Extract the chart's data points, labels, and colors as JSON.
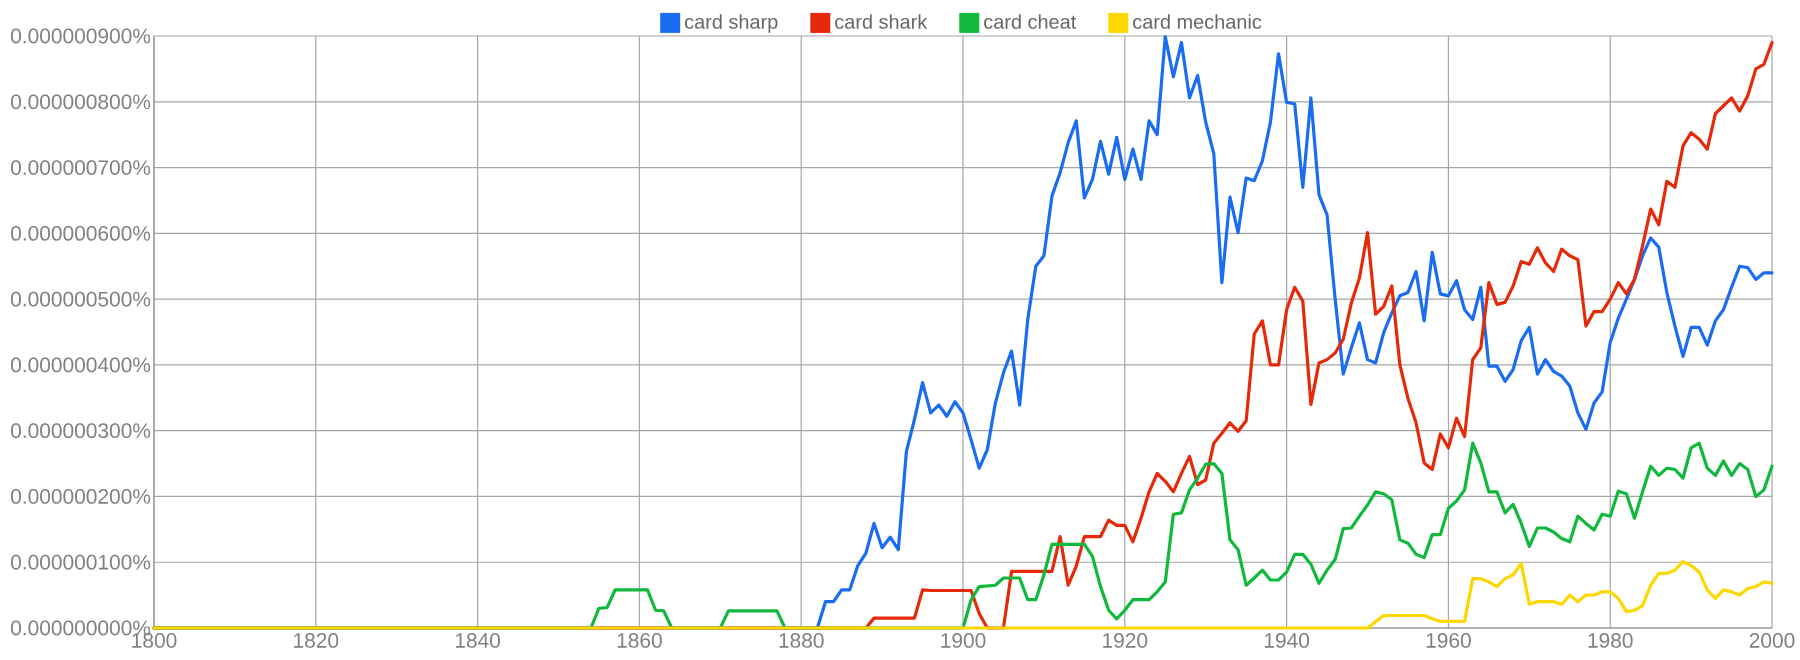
{
  "chart_data": {
    "type": "line",
    "xlim": [
      1800,
      2000
    ],
    "ylim": [
      0,
      9e-07
    ],
    "xticks": [
      1800,
      1820,
      1840,
      1860,
      1880,
      1900,
      1920,
      1940,
      1960,
      1980,
      2000
    ],
    "yticks": [
      {
        "value": 0,
        "label": "0.000000000%"
      },
      {
        "value": 1e-07,
        "label": "0.000000100%"
      },
      {
        "value": 2e-07,
        "label": "0.000000200%"
      },
      {
        "value": 3e-07,
        "label": "0.000000300%"
      },
      {
        "value": 4e-07,
        "label": "0.000000400%"
      },
      {
        "value": 5e-07,
        "label": "0.000000500%"
      },
      {
        "value": 6e-07,
        "label": "0.000000600%"
      },
      {
        "value": 7e-07,
        "label": "0.000000700%"
      },
      {
        "value": 8e-07,
        "label": "0.000000800%"
      },
      {
        "value": 9e-07,
        "label": "0.000000900%"
      }
    ],
    "grid": true,
    "legend": "top",
    "marker": "none",
    "line_style": "solid",
    "series": [
      {
        "name": "card sharp",
        "color": "#1a6cf0",
        "x": [
          1800,
          1882,
          1883,
          1884,
          1885,
          1886,
          1887,
          1888,
          1889,
          1890,
          1891,
          1892,
          1893,
          1894,
          1895,
          1896,
          1897,
          1898,
          1899,
          1900,
          1901,
          1902,
          1903,
          1904,
          1905,
          1906,
          1907,
          1908,
          1909,
          1910,
          1911,
          1912,
          1913,
          1914,
          1915,
          1916,
          1917,
          1918,
          1919,
          1920,
          1921,
          1922,
          1923,
          1924,
          1925,
          1926,
          1927,
          1928,
          1929,
          1930,
          1931,
          1932,
          1933,
          1934,
          1935,
          1936,
          1937,
          1938,
          1939,
          1940,
          1941,
          1942,
          1943,
          1944,
          1945,
          1946,
          1947,
          1948,
          1949,
          1950,
          1951,
          1952,
          1953,
          1954,
          1955,
          1956,
          1957,
          1958,
          1959,
          1960,
          1961,
          1962,
          1963,
          1964,
          1965,
          1966,
          1967,
          1968,
          1969,
          1970,
          1971,
          1972,
          1973,
          1974,
          1975,
          1976,
          1977,
          1978,
          1979,
          1980,
          1981,
          1982,
          1983,
          1984,
          1985,
          1986,
          1987,
          1988,
          1989,
          1990,
          1991,
          1992,
          1993,
          1994,
          1995,
          1996,
          1997,
          1998,
          1999,
          2000
        ],
        "values": [
          0,
          0,
          4e-08,
          4e-08,
          5.8e-08,
          5.8e-08,
          9.5e-08,
          1.14e-07,
          1.59e-07,
          1.22e-07,
          1.38e-07,
          1.19e-07,
          2.68e-07,
          3.17e-07,
          3.73e-07,
          3.27e-07,
          3.39e-07,
          3.22e-07,
          3.44e-07,
          3.27e-07,
          2.86e-07,
          2.43e-07,
          2.71e-07,
          3.42e-07,
          3.88e-07,
          4.21e-07,
          3.39e-07,
          4.69e-07,
          5.5e-07,
          5.66e-07,
          6.57e-07,
          6.92e-07,
          7.38e-07,
          7.71e-07,
          6.54e-07,
          6.82e-07,
          7.4e-07,
          6.9e-07,
          7.46e-07,
          6.82e-07,
          7.28e-07,
          6.82e-07,
          7.71e-07,
          7.5e-07,
          8.99e-07,
          8.38e-07,
          8.9e-07,
          8.06e-07,
          8.4e-07,
          7.69e-07,
          7.21e-07,
          5.25e-07,
          6.55e-07,
          6.01e-07,
          6.84e-07,
          6.8e-07,
          7.1e-07,
          7.69e-07,
          8.73e-07,
          7.99e-07,
          7.97e-07,
          6.7e-07,
          8.06e-07,
          6.59e-07,
          6.28e-07,
          5e-07,
          3.86e-07,
          4.26e-07,
          4.64e-07,
          4.08e-07,
          4.03e-07,
          4.49e-07,
          4.79e-07,
          5.05e-07,
          5.1e-07,
          5.42e-07,
          4.67e-07,
          5.71e-07,
          5.08e-07,
          5.05e-07,
          5.28e-07,
          4.84e-07,
          4.69e-07,
          5.18e-07,
          3.98e-07,
          3.98e-07,
          3.75e-07,
          3.93e-07,
          4.37e-07,
          4.57e-07,
          3.86e-07,
          4.08e-07,
          3.9e-07,
          3.83e-07,
          3.68e-07,
          3.27e-07,
          3.02e-07,
          3.42e-07,
          3.59e-07,
          4.34e-07,
          4.71e-07,
          5e-07,
          5.3e-07,
          5.66e-07,
          5.93e-07,
          5.79e-07,
          5.1e-07,
          4.59e-07,
          4.13e-07,
          4.57e-07,
          4.57e-07,
          4.3e-07,
          4.67e-07,
          4.84e-07,
          5.18e-07,
          5.5e-07,
          5.48e-07,
          5.3e-07,
          5.4e-07,
          5.4e-07
        ]
      },
      {
        "name": "card shark",
        "color": "#e52a0a",
        "x": [
          1800,
          1888,
          1889,
          1894,
          1895,
          1896,
          1901,
          1902,
          1903,
          1905,
          1906,
          1911,
          1912,
          1913,
          1914,
          1915,
          1917,
          1918,
          1919,
          1920,
          1921,
          1922,
          1923,
          1924,
          1925,
          1926,
          1927,
          1928,
          1929,
          1930,
          1931,
          1932,
          1933,
          1934,
          1935,
          1936,
          1937,
          1938,
          1939,
          1940,
          1941,
          1942,
          1943,
          1944,
          1945,
          1946,
          1947,
          1948,
          1949,
          1950,
          1951,
          1952,
          1953,
          1954,
          1955,
          1956,
          1957,
          1958,
          1959,
          1960,
          1961,
          1962,
          1963,
          1964,
          1965,
          1966,
          1967,
          1968,
          1969,
          1970,
          1971,
          1972,
          1973,
          1974,
          1975,
          1976,
          1977,
          1978,
          1979,
          1980,
          1981,
          1982,
          1983,
          1984,
          1985,
          1986,
          1987,
          1988,
          1989,
          1990,
          1991,
          1992,
          1993,
          1994,
          1995,
          1996,
          1997,
          1998,
          1999,
          2000
        ],
        "values": [
          0,
          0,
          1.5e-08,
          1.5e-08,
          5.8e-08,
          5.7e-08,
          5.7e-08,
          2.2e-08,
          0,
          0,
          8.6e-08,
          8.6e-08,
          1.39e-07,
          6.5e-08,
          9.4e-08,
          1.39e-07,
          1.39e-07,
          1.64e-07,
          1.56e-07,
          1.56e-07,
          1.31e-07,
          1.67e-07,
          2.07e-07,
          2.35e-07,
          2.23e-07,
          2.07e-07,
          2.35e-07,
          2.61e-07,
          2.18e-07,
          2.25e-07,
          2.81e-07,
          2.96e-07,
          3.12e-07,
          2.99e-07,
          3.15e-07,
          4.47e-07,
          4.67e-07,
          4e-07,
          4e-07,
          4.84e-07,
          5.18e-07,
          4.97e-07,
          3.4e-07,
          4.03e-07,
          4.08e-07,
          4.18e-07,
          4.39e-07,
          4.94e-07,
          5.32e-07,
          6.01e-07,
          4.77e-07,
          4.89e-07,
          5.2e-07,
          4e-07,
          3.49e-07,
          3.12e-07,
          2.51e-07,
          2.41e-07,
          2.95e-07,
          2.74e-07,
          3.19e-07,
          2.91e-07,
          4.08e-07,
          4.26e-07,
          5.25e-07,
          4.92e-07,
          4.95e-07,
          5.2e-07,
          5.57e-07,
          5.53e-07,
          5.78e-07,
          5.55e-07,
          5.42e-07,
          5.76e-07,
          5.66e-07,
          5.6e-07,
          4.59e-07,
          4.81e-07,
          4.81e-07,
          5e-07,
          5.25e-07,
          5.08e-07,
          5.3e-07,
          5.81e-07,
          6.37e-07,
          6.13e-07,
          6.79e-07,
          6.7e-07,
          7.33e-07,
          7.53e-07,
          7.43e-07,
          7.28e-07,
          7.82e-07,
          7.94e-07,
          8.06e-07,
          7.86e-07,
          8.09e-07,
          8.5e-07,
          8.57e-07,
          8.9e-07
        ]
      },
      {
        "name": "card cheat",
        "color": "#10b83c",
        "x": [
          1800,
          1854,
          1855,
          1856,
          1857,
          1861,
          1862,
          1863,
          1864,
          1870,
          1871,
          1877,
          1878,
          1900,
          1901,
          1902,
          1904,
          1905,
          1907,
          1908,
          1909,
          1910,
          1911,
          1915,
          1916,
          1917,
          1918,
          1919,
          1920,
          1921,
          1923,
          1924,
          1925,
          1926,
          1927,
          1928,
          1929,
          1930,
          1931,
          1932,
          1933,
          1934,
          1935,
          1936,
          1937,
          1938,
          1939,
          1940,
          1941,
          1942,
          1943,
          1944,
          1945,
          1946,
          1947,
          1948,
          1949,
          1950,
          1951,
          1952,
          1953,
          1954,
          1955,
          1956,
          1957,
          1958,
          1959,
          1960,
          1961,
          1962,
          1963,
          1964,
          1965,
          1966,
          1967,
          1968,
          1969,
          1970,
          1971,
          1972,
          1973,
          1974,
          1975,
          1976,
          1977,
          1978,
          1979,
          1980,
          1981,
          1982,
          1983,
          1984,
          1985,
          1986,
          1987,
          1988,
          1989,
          1990,
          1991,
          1992,
          1993,
          1994,
          1995,
          1996,
          1997,
          1998,
          1999,
          2000
        ],
        "values": [
          0,
          0,
          3e-08,
          3.1e-08,
          5.8e-08,
          5.8e-08,
          2.7e-08,
          2.6e-08,
          0,
          0,
          2.6e-08,
          2.6e-08,
          0,
          0,
          4.3e-08,
          6.3e-08,
          6.5e-08,
          7.6e-08,
          7.6e-08,
          4.3e-08,
          4.3e-08,
          8.1e-08,
          1.27e-07,
          1.27e-07,
          1.09e-07,
          6.3e-08,
          2.7e-08,
          1.4e-08,
          2.7e-08,
          4.3e-08,
          4.3e-08,
          5.5e-08,
          7e-08,
          1.73e-07,
          1.75e-07,
          2.1e-07,
          2.28e-07,
          2.49e-07,
          2.5e-07,
          2.35e-07,
          1.34e-07,
          1.19e-07,
          6.5e-08,
          7.6e-08,
          8.8e-08,
          7.3e-08,
          7.3e-08,
          8.5e-08,
          1.12e-07,
          1.12e-07,
          9.7e-08,
          6.8e-08,
          8.8e-08,
          1.04e-07,
          1.51e-07,
          1.52e-07,
          1.7e-07,
          1.87e-07,
          2.07e-07,
          2.04e-07,
          1.95e-07,
          1.34e-07,
          1.29e-07,
          1.12e-07,
          1.07e-07,
          1.42e-07,
          1.42e-07,
          1.82e-07,
          1.93e-07,
          2.1e-07,
          2.81e-07,
          2.51e-07,
          2.07e-07,
          2.07e-07,
          1.75e-07,
          1.88e-07,
          1.59e-07,
          1.24e-07,
          1.52e-07,
          1.52e-07,
          1.46e-07,
          1.36e-07,
          1.31e-07,
          1.7e-07,
          1.59e-07,
          1.49e-07,
          1.73e-07,
          1.7e-07,
          2.08e-07,
          2.04e-07,
          1.67e-07,
          2.07e-07,
          2.46e-07,
          2.32e-07,
          2.43e-07,
          2.41e-07,
          2.28e-07,
          2.74e-07,
          2.81e-07,
          2.43e-07,
          2.32e-07,
          2.54e-07,
          2.32e-07,
          2.5e-07,
          2.41e-07,
          2e-07,
          2.1e-07,
          2.46e-07
        ]
      },
      {
        "name": "card mechanic",
        "color": "#ffd700",
        "x": [
          1800,
          1950,
          1952,
          1957,
          1958,
          1959,
          1962,
          1963,
          1964,
          1965,
          1966,
          1967,
          1968,
          1969,
          1970,
          1971,
          1973,
          1974,
          1975,
          1976,
          1977,
          1978,
          1979,
          1980,
          1981,
          1982,
          1983,
          1984,
          1985,
          1986,
          1987,
          1988,
          1989,
          1990,
          1991,
          1992,
          1993,
          1994,
          1995,
          1996,
          1997,
          1998,
          1999,
          2000
        ],
        "values": [
          0,
          0,
          1.9e-08,
          1.9e-08,
          1.4e-08,
          1e-08,
          1e-08,
          7.5e-08,
          7.5e-08,
          7e-08,
          6.3e-08,
          7.5e-08,
          8.1e-08,
          9.8e-08,
          3.6e-08,
          4e-08,
          4e-08,
          3.6e-08,
          5e-08,
          4e-08,
          5e-08,
          5e-08,
          5.5e-08,
          5.5e-08,
          4.5e-08,
          2.5e-08,
          2.7e-08,
          3.4e-08,
          6.5e-08,
          8.3e-08,
          8.3e-08,
          8.8e-08,
          1.01e-07,
          9.5e-08,
          8.5e-08,
          5.8e-08,
          4.5e-08,
          5.8e-08,
          5.5e-08,
          5e-08,
          6e-08,
          6.3e-08,
          7e-08,
          6.8e-08
        ]
      }
    ]
  }
}
